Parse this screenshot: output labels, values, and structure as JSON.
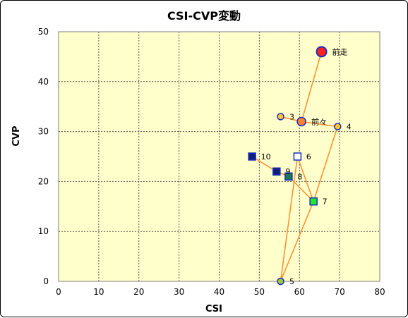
{
  "chart_data": {
    "type": "scatter",
    "title": "CSI-CVP変動",
    "xlabel": "CSI",
    "ylabel": "CVP",
    "xlim": [
      0,
      80
    ],
    "ylim": [
      0,
      50
    ],
    "xticks": [
      "0",
      "10",
      "20",
      "30",
      "40",
      "50",
      "60",
      "70",
      "80"
    ],
    "yticks": [
      "0",
      "10",
      "20",
      "30",
      "40",
      "50"
    ],
    "grid": true,
    "plot_background": "#FFFFCC",
    "line_color": "#FF8C28",
    "points": [
      {
        "label": "前走",
        "x": 65.5,
        "y": 46,
        "marker": "circle",
        "fill": "#FF2020",
        "size": "large"
      },
      {
        "label": "前々",
        "x": 60.5,
        "y": 32,
        "marker": "circle",
        "fill": "#FF8030",
        "size": "medium"
      },
      {
        "label": "3",
        "x": 55.3,
        "y": 33,
        "marker": "circle",
        "fill": "#FFC832",
        "size": "small"
      },
      {
        "label": "4",
        "x": 69.5,
        "y": 31,
        "marker": "circle",
        "fill": "#FFC832",
        "size": "small"
      },
      {
        "label": "5",
        "x": 55.3,
        "y": 0,
        "marker": "circle",
        "fill": "#A0C832",
        "size": "small"
      },
      {
        "label": "6",
        "x": 59.5,
        "y": 25,
        "marker": "square",
        "fill": "#FFFFFF",
        "size": "small"
      },
      {
        "label": "7",
        "x": 63.5,
        "y": 16,
        "marker": "square",
        "fill": "#28E628",
        "size": "small"
      },
      {
        "label": "8",
        "x": 57.3,
        "y": 21,
        "marker": "square",
        "fill": "#1E7850",
        "size": "small"
      },
      {
        "label": "9",
        "x": 54.3,
        "y": 22,
        "marker": "square",
        "fill": "#10207A",
        "size": "small"
      },
      {
        "label": "10",
        "x": 48.2,
        "y": 25,
        "marker": "square",
        "fill": "#10207A",
        "size": "small"
      }
    ],
    "connections": [
      [
        "前走",
        "前々"
      ],
      [
        "前々",
        "3"
      ],
      [
        "前々",
        "4"
      ],
      [
        "4",
        "7"
      ],
      [
        "7",
        "5"
      ],
      [
        "5",
        "6"
      ],
      [
        "6",
        "7"
      ],
      [
        "7",
        "8"
      ],
      [
        "8",
        "9"
      ],
      [
        "9",
        "10"
      ]
    ]
  }
}
